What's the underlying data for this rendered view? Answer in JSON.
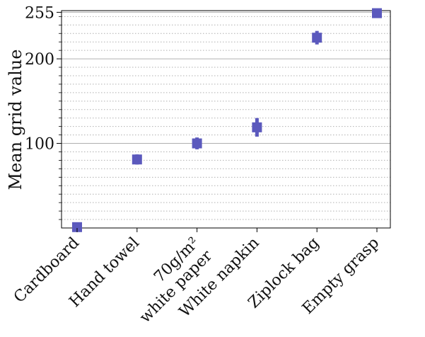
{
  "chart_data": {
    "type": "scatter",
    "title": "",
    "xlabel": "",
    "ylabel": "Mean grid value",
    "categories": [
      "Cardboard",
      "Hand towel",
      "70g/m²\nwhite paper",
      "White napkin",
      "Ziplock bag",
      "Empty grasp"
    ],
    "series": [
      {
        "values": [
          1,
          81,
          100,
          119,
          225,
          254
        ],
        "error": [
          1,
          6,
          7,
          11,
          8,
          2
        ]
      }
    ],
    "yticks": [
      100,
      200,
      255
    ],
    "ylim": [
      0,
      257
    ],
    "grid": true,
    "minor_grid": true,
    "marker_color": "#5b59bd",
    "grid_color": "#b0b0b0"
  }
}
